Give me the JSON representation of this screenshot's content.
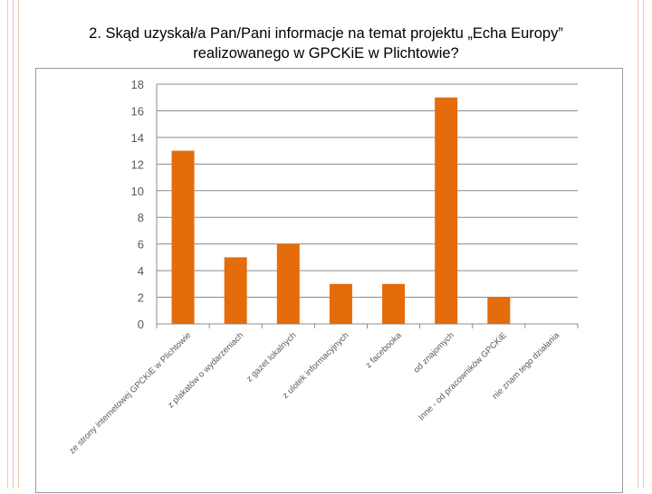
{
  "slide": {
    "title_line1": "2. Skąd uzyskał/a Pan/Pani informacje na temat projektu „Echa Europy”",
    "title_line2": "realizowanego w GPCKiE w Plichtowie?"
  },
  "colors": {
    "bar": "#e46c0a",
    "grid": "#8c8c8c",
    "tick_text": "#595959",
    "frame": "#9a9a9a",
    "rail": "#f2c6b4"
  },
  "chart_data": {
    "type": "bar",
    "categories": [
      "ze strony internetowej GPCKiE w Plichtowie",
      "z plakatów o wydarzeniach",
      "z gazet lokalnych",
      "z ulotek informacyjnych",
      "z facebooka",
      "od znajomych",
      "Inne - od pracowników GPCKiE",
      "nie znam tego działania"
    ],
    "values": [
      13,
      5,
      6,
      3,
      3,
      17,
      2,
      0
    ],
    "yticks": [
      0,
      2,
      4,
      6,
      8,
      10,
      12,
      14,
      16,
      18
    ],
    "ylim": [
      0,
      18
    ],
    "grid": true,
    "legend": "none"
  }
}
